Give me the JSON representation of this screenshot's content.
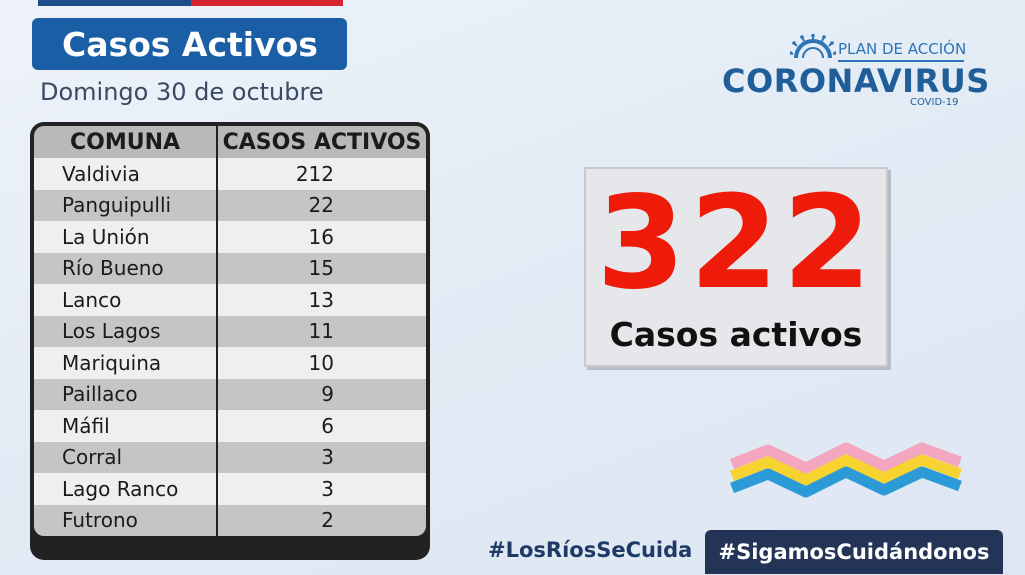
{
  "header": {
    "title": "Casos Activos",
    "date": "Domingo 30 de octubre"
  },
  "table": {
    "headers": [
      "COMUNA",
      "CASOS ACTIVOS"
    ],
    "rows": [
      {
        "comuna": "Valdivia",
        "casos": "212"
      },
      {
        "comuna": "Panguipulli",
        "casos": "22"
      },
      {
        "comuna": "La Unión",
        "casos": "16"
      },
      {
        "comuna": "Río Bueno",
        "casos": "15"
      },
      {
        "comuna": "Lanco",
        "casos": "13"
      },
      {
        "comuna": "Los Lagos",
        "casos": "11"
      },
      {
        "comuna": "Mariquina",
        "casos": "10"
      },
      {
        "comuna": "Paillaco",
        "casos": "9"
      },
      {
        "comuna": "Máfil",
        "casos": "6"
      },
      {
        "comuna": "Corral",
        "casos": "3"
      },
      {
        "comuna": "Lago Ranco",
        "casos": "3"
      },
      {
        "comuna": "Futrono",
        "casos": "2"
      }
    ]
  },
  "logo": {
    "plan": "PLAN DE ACCIÓN",
    "corona": "CORONAVIRUS",
    "covid": "COVID-19",
    "icon": "virus-icon"
  },
  "total": {
    "value": "322",
    "label": "Casos activos"
  },
  "hashtags": {
    "left": "#LosRíosSeCuida",
    "right": "#SigamosCuidándonos"
  },
  "colors": {
    "title_bg": "#1a5fa6",
    "total_red": "#ee1b0b",
    "hashtag_bg": "#233457",
    "wave_pink": "#f4a6c0",
    "wave_yellow": "#f6d330",
    "wave_blue": "#2c9ad6"
  }
}
